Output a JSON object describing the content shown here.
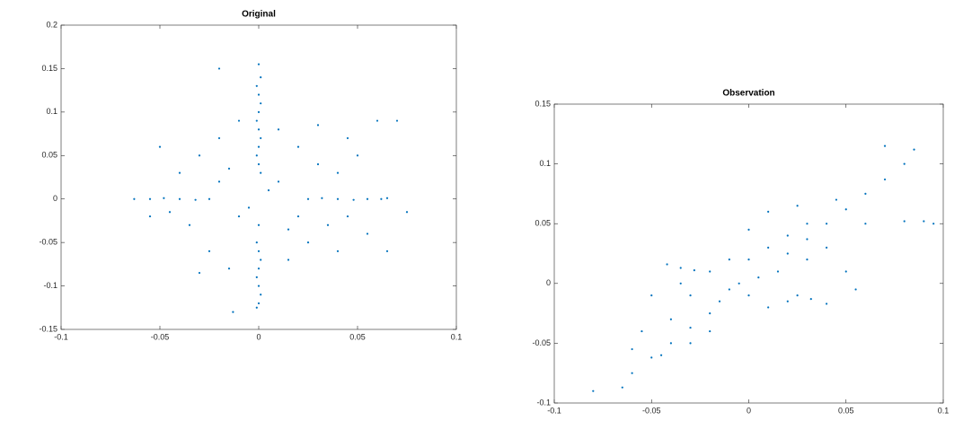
{
  "chart_data": [
    {
      "type": "scatter",
      "title": "Original",
      "color": "#0072bd",
      "xlim": [
        -0.1,
        0.1
      ],
      "ylim": [
        -0.15,
        0.2
      ],
      "xticks": [
        -0.1,
        -0.05,
        0,
        0.05,
        0.1
      ],
      "yticks": [
        -0.15,
        -0.1,
        -0.05,
        0,
        0.05,
        0.1,
        0.15,
        0.2
      ],
      "x": [
        0,
        0.001,
        -0.001,
        0,
        0.001,
        0,
        -0.001,
        0,
        0.001,
        0,
        -0.001,
        0,
        0.001,
        0,
        -0.001,
        0,
        0.001,
        0,
        -0.001,
        0,
        0.001,
        0,
        -0.001,
        -0.063,
        -0.055,
        -0.048,
        -0.04,
        -0.032,
        -0.025,
        0.025,
        0.032,
        0.04,
        0.048,
        0.055,
        0.062,
        0.065,
        -0.03,
        -0.02,
        -0.01,
        0.01,
        0.02,
        0.03,
        0.04,
        -0.04,
        -0.035,
        -0.025,
        -0.015,
        0.015,
        0.025,
        0.035,
        0.045,
        -0.045,
        -0.02,
        0.02,
        -0.01,
        0.01,
        -0.015,
        0.015,
        0.005,
        -0.005,
        0.05,
        0.06,
        0.07,
        0.065,
        0.075,
        0.055,
        -0.05,
        -0.055,
        -0.02,
        -0.013,
        0.03,
        -0.03,
        0.04,
        0.045
      ],
      "y": [
        0.155,
        0.14,
        0.13,
        0.12,
        0.11,
        0.1,
        0.09,
        0.08,
        0.07,
        0.06,
        0.05,
        0.04,
        0.03,
        -0.03,
        -0.05,
        -0.06,
        -0.07,
        -0.08,
        -0.09,
        -0.1,
        -0.11,
        -0.12,
        -0.125,
        0,
        0,
        0.001,
        0,
        -0.001,
        0,
        0,
        0.001,
        0,
        -0.001,
        0,
        0,
        0.001,
        0.05,
        0.07,
        0.09,
        0.08,
        0.06,
        0.04,
        0.03,
        0.03,
        -0.03,
        -0.06,
        -0.08,
        -0.07,
        -0.05,
        -0.03,
        -0.02,
        -0.015,
        0.02,
        -0.02,
        -0.02,
        0.02,
        0.035,
        -0.035,
        0.01,
        -0.01,
        0.05,
        0.09,
        0.09,
        -0.06,
        -0.015,
        -0.04,
        0.06,
        -0.02,
        0.15,
        -0.13,
        0.085,
        -0.085,
        -0.06,
        0.07
      ]
    },
    {
      "type": "scatter",
      "title": "Observation",
      "color": "#0072bd",
      "xlim": [
        -0.1,
        0.1
      ],
      "ylim": [
        -0.1,
        0.15
      ],
      "xticks": [
        -0.1,
        -0.05,
        0,
        0.05,
        0.1
      ],
      "yticks": [
        -0.1,
        -0.05,
        0,
        0.05,
        0.1,
        0.15
      ],
      "x": [
        -0.08,
        -0.065,
        -0.06,
        -0.05,
        -0.04,
        -0.03,
        -0.02,
        0.02,
        0.03,
        0.04,
        0.05,
        0.06,
        0.07,
        0.08,
        0.085,
        0.07,
        -0.042,
        -0.035,
        -0.028,
        0.025,
        0.032,
        0.04,
        -0.05,
        -0.055,
        -0.04,
        -0.03,
        -0.02,
        -0.01,
        0,
        0.01,
        0.02,
        0.03,
        0.01,
        0,
        -0.01,
        0,
        0.01,
        0.02,
        -0.02,
        -0.03,
        0.03,
        0.04,
        0.05,
        0.06,
        0.08,
        0.09,
        0.095,
        0.005,
        -0.005,
        0.015,
        -0.015,
        0.025,
        0.045,
        -0.045,
        -0.06,
        0.055,
        -0.035
      ],
      "y": [
        -0.09,
        -0.087,
        -0.075,
        -0.062,
        -0.05,
        -0.037,
        -0.025,
        0.025,
        0.037,
        0.05,
        0.062,
        0.075,
        0.087,
        0.1,
        0.112,
        0.115,
        0.016,
        0.013,
        0.011,
        -0.01,
        -0.013,
        -0.017,
        -0.01,
        -0.04,
        -0.03,
        -0.01,
        0.01,
        0.02,
        0.02,
        0.03,
        0.04,
        0.05,
        0.06,
        0.045,
        -0.005,
        -0.01,
        -0.02,
        -0.015,
        -0.04,
        -0.05,
        0.02,
        0.03,
        0.01,
        0.05,
        0.052,
        0.052,
        0.05,
        0.005,
        0,
        0.01,
        -0.015,
        0.065,
        0.07,
        -0.06,
        -0.055,
        -0.005,
        0
      ]
    }
  ]
}
